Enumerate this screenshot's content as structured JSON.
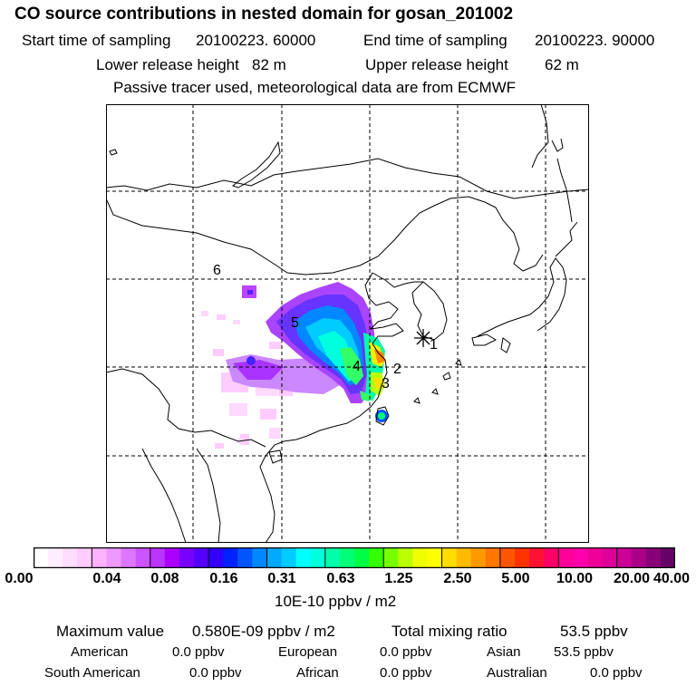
{
  "title": "CO  source contributions in nested domain for gosan_201002",
  "header": {
    "start_label": "Start time of sampling",
    "start_value": "20100223. 60000",
    "end_label": "End time of sampling",
    "end_value": "20100223. 90000",
    "lower_label": "Lower release height",
    "lower_value": "82 m",
    "upper_label": "Upper release height",
    "upper_value": "62 m",
    "note": "Passive tracer used, meteorological data are from ECMWF"
  },
  "map": {
    "source_labels": [
      "1",
      "2",
      "3",
      "4",
      "5",
      "6"
    ],
    "receptor_icon": "asterisk-icon"
  },
  "colorbar": {
    "ticks": [
      "0.00",
      "0.04",
      "0.08",
      "0.16",
      "0.31",
      "0.63",
      "1.25",
      "2.50",
      "5.00",
      "10.00",
      "20.00",
      "40.00"
    ],
    "unit": "10E-10 ppbv / m2",
    "colors": [
      "#ffffff",
      "#ffeeff",
      "#ffddff",
      "#ffccff",
      "#ffb3ff",
      "#ee99ff",
      "#dd77ff",
      "#cc55ff",
      "#bb33ff",
      "#aa00ff",
      "#7700ff",
      "#5500ff",
      "#3300ff",
      "#0022ff",
      "#0055ff",
      "#0088ff",
      "#00aaff",
      "#00ccff",
      "#00ffff",
      "#00ffdd",
      "#00ffaa",
      "#00ff77",
      "#00ff44",
      "#33ff00",
      "#77ff00",
      "#bbff00",
      "#eeff00",
      "#ffff00",
      "#ffdd00",
      "#ffbb00",
      "#ff9900",
      "#ff7700",
      "#ff5500",
      "#ff3300",
      "#ff1133",
      "#ff0066",
      "#ff0099",
      "#ff00aa",
      "#ee0099",
      "#dd0099",
      "#cc0099",
      "#aa0088",
      "#880077",
      "#660066"
    ]
  },
  "summary": {
    "max_label": "Maximum value",
    "max_value": "0.580E-09 ppbv / m2",
    "total_label": "Total mixing ratio",
    "total_value": "53.5 ppbv",
    "regions": [
      {
        "name": "American",
        "value": "0.0 ppbv"
      },
      {
        "name": "European",
        "value": "0.0 ppbv"
      },
      {
        "name": "Asian",
        "value": "53.5 ppbv"
      },
      {
        "name": "South American",
        "value": "0.0 ppbv"
      },
      {
        "name": "African",
        "value": "0.0 ppbv"
      },
      {
        "name": "Australian",
        "value": "0.0 ppbv"
      }
    ]
  }
}
